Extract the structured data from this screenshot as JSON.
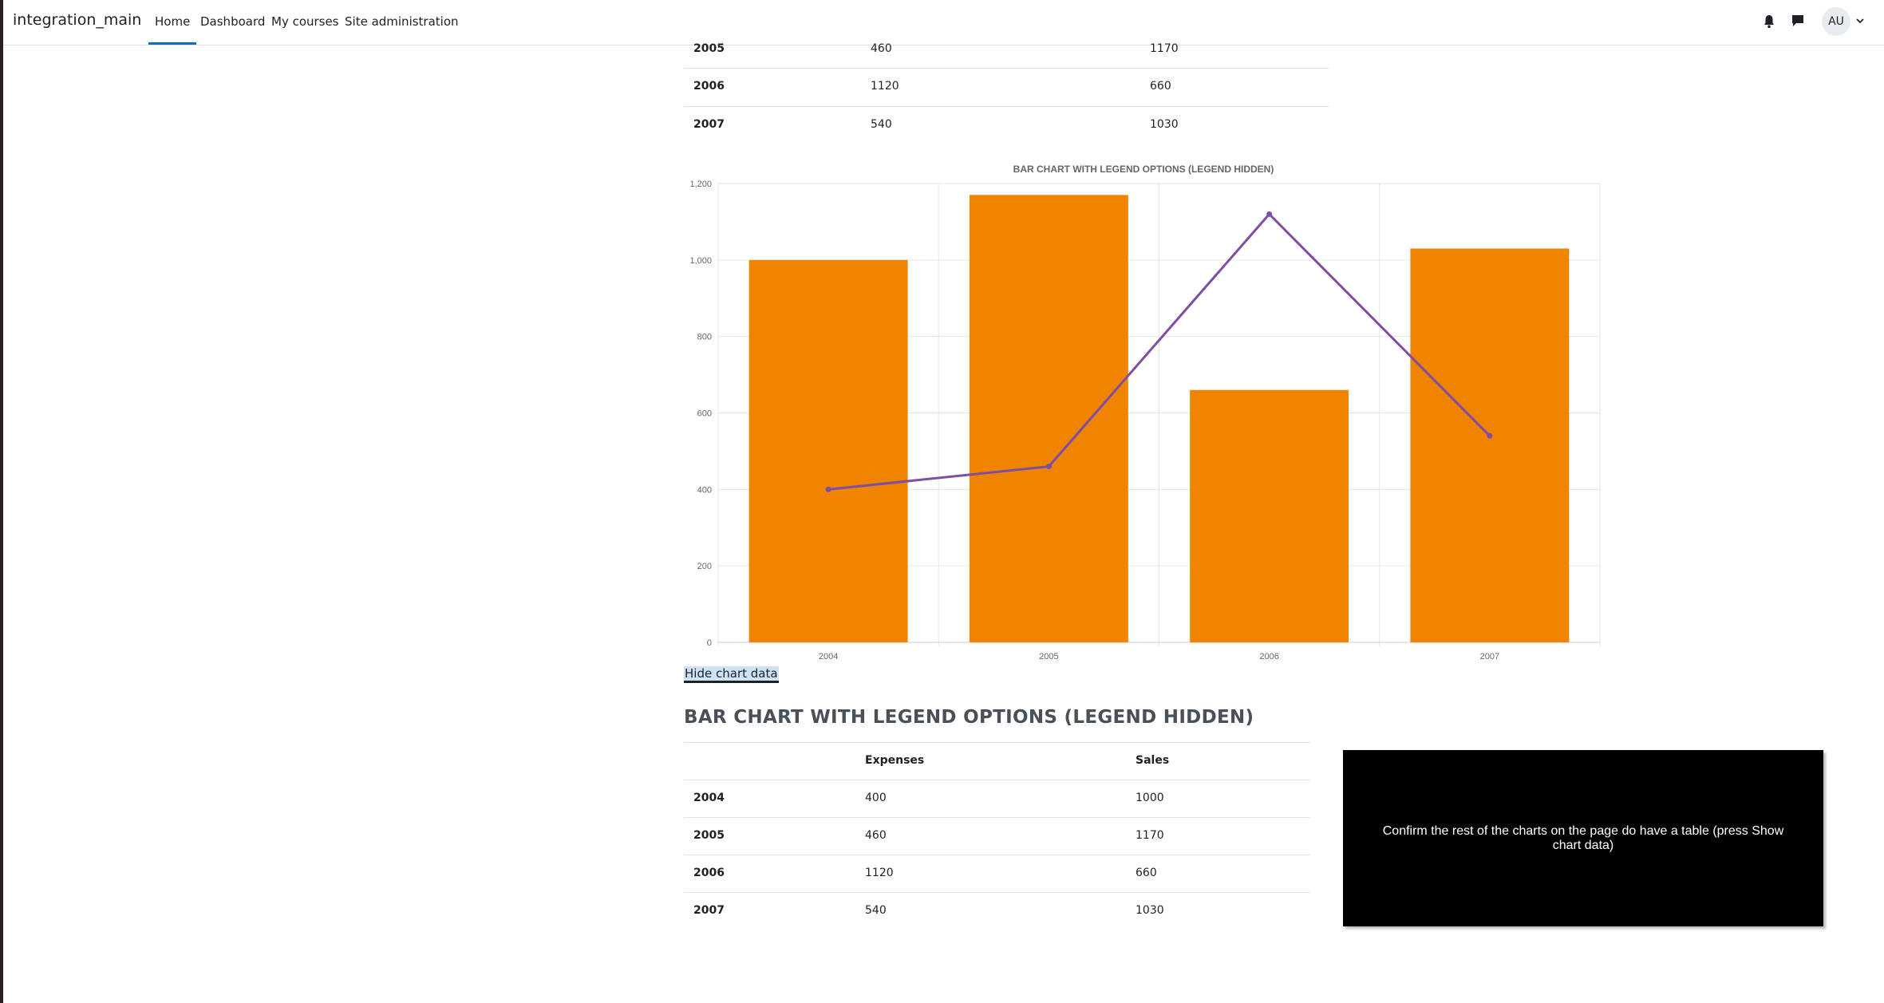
{
  "navbar": {
    "brand": "integration_main",
    "items": [
      {
        "label": "Home",
        "active": true
      },
      {
        "label": "Dashboard"
      },
      {
        "label": "My courses"
      },
      {
        "label": "Site administration"
      }
    ],
    "avatar_initials": "AU",
    "icons": [
      "bell-icon",
      "message-icon",
      "chevron-down-icon"
    ],
    "accent_color": "#0f6cbf"
  },
  "top_table": {
    "rows": [
      {
        "year": "2005",
        "expenses": "460",
        "sales": "1170"
      },
      {
        "year": "2006",
        "expenses": "1120",
        "sales": "660"
      },
      {
        "year": "2007",
        "expenses": "540",
        "sales": "1030"
      }
    ]
  },
  "chart_data": {
    "type": "bar",
    "title": "BAR CHART WITH LEGEND OPTIONS (LEGEND HIDDEN)",
    "categories": [
      "2004",
      "2005",
      "2006",
      "2007"
    ],
    "series": [
      {
        "name": "Sales",
        "type": "bar",
        "color": "#f08300",
        "values": [
          1000,
          1170,
          660,
          1030
        ]
      },
      {
        "name": "Expenses",
        "type": "line",
        "color": "#7e4ea2",
        "values": [
          400,
          460,
          1120,
          540
        ]
      }
    ],
    "yticks": [
      "0",
      "200",
      "400",
      "600",
      "800",
      "1,000",
      "1,200"
    ],
    "ylim": [
      0,
      1200
    ],
    "grid": true,
    "legend": "hidden"
  },
  "hide_chart_data_label": "Hide chart data",
  "data_section": {
    "heading": "BAR CHART WITH LEGEND OPTIONS (LEGEND HIDDEN)",
    "headers": [
      "",
      "Expenses",
      "Sales"
    ],
    "rows": [
      {
        "year": "2004",
        "expenses": "400",
        "sales": "1000"
      },
      {
        "year": "2005",
        "expenses": "460",
        "sales": "1170"
      },
      {
        "year": "2006",
        "expenses": "1120",
        "sales": "660"
      },
      {
        "year": "2007",
        "expenses": "540",
        "sales": "1030"
      }
    ]
  },
  "tooltip": {
    "text": "Confirm the rest of the charts on the page do have a table (press Show chart data)"
  }
}
